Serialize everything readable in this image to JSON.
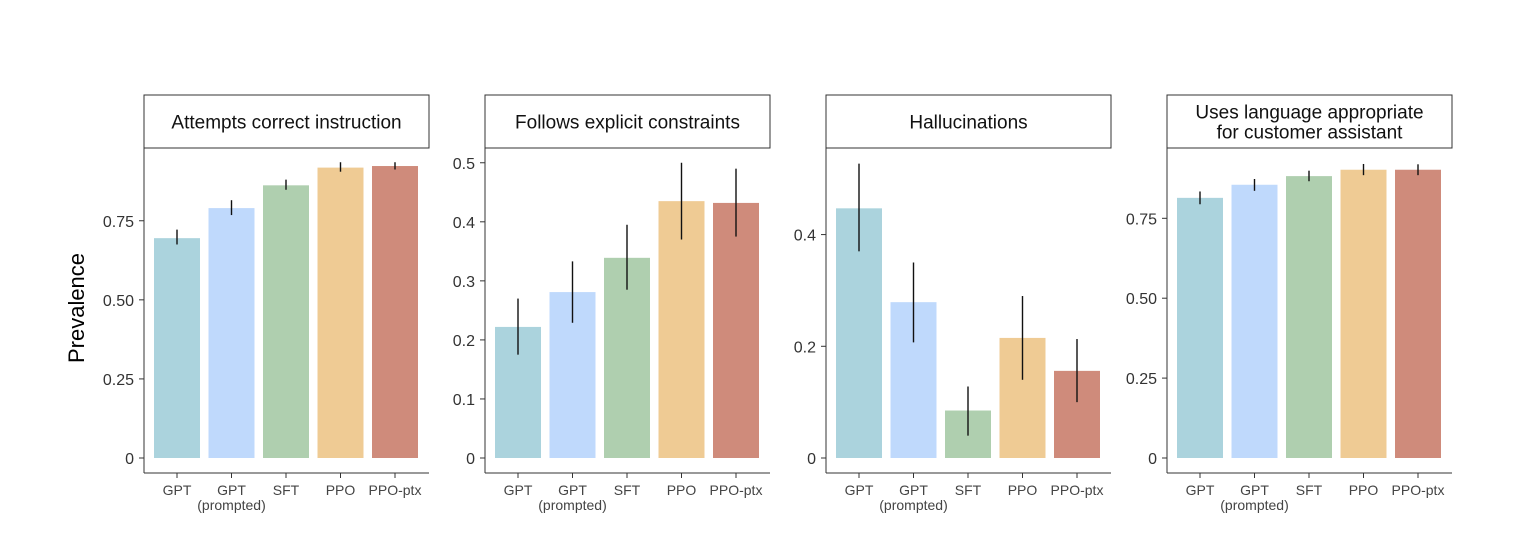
{
  "figure": {
    "ylabel": "Prevalence"
  },
  "chart_data": [
    {
      "type": "bar",
      "title_lines": [
        "Attempts correct instruction"
      ],
      "categories": [
        [
          "GPT"
        ],
        [
          "GPT",
          "(prompted)"
        ],
        [
          "SFT"
        ],
        [
          "PPO"
        ],
        [
          "PPO-ptx"
        ]
      ],
      "values": [
        0.695,
        0.79,
        0.862,
        0.918,
        0.923
      ],
      "err_low": [
        0.675,
        0.768,
        0.848,
        0.905,
        0.912
      ],
      "err_high": [
        0.722,
        0.815,
        0.88,
        0.935,
        0.935
      ],
      "colors": [
        "#abd3dd",
        "#bfd9fc",
        "#afcfaf",
        "#efcb94",
        "#cf8b7b"
      ],
      "ylim": [
        0,
        0.98
      ],
      "yticks": [
        0,
        0.25,
        0.5,
        0.75
      ],
      "ytick_labels": [
        "0",
        "0.25",
        "0.50",
        "0.75"
      ]
    },
    {
      "type": "bar",
      "title_lines": [
        "Follows explicit constraints"
      ],
      "categories": [
        [
          "GPT"
        ],
        [
          "GPT",
          "(prompted)"
        ],
        [
          "SFT"
        ],
        [
          "PPO"
        ],
        [
          "PPO-ptx"
        ]
      ],
      "values": [
        0.222,
        0.281,
        0.339,
        0.435,
        0.432
      ],
      "err_low": [
        0.175,
        0.229,
        0.285,
        0.37,
        0.375
      ],
      "err_high": [
        0.27,
        0.333,
        0.395,
        0.5,
        0.49
      ],
      "colors": [
        "#abd3dd",
        "#bfd9fc",
        "#afcfaf",
        "#efcb94",
        "#cf8b7b"
      ],
      "ylim": [
        0,
        0.525
      ],
      "yticks": [
        0,
        0.1,
        0.2,
        0.3,
        0.4,
        0.5
      ],
      "ytick_labels": [
        "0",
        "0.1",
        "0.2",
        "0.3",
        "0.4",
        "0.5"
      ]
    },
    {
      "type": "bar",
      "title_lines": [
        "Hallucinations"
      ],
      "categories": [
        [
          "GPT"
        ],
        [
          "GPT",
          "(prompted)"
        ],
        [
          "SFT"
        ],
        [
          "PPO"
        ],
        [
          "PPO-ptx"
        ]
      ],
      "values": [
        0.447,
        0.279,
        0.085,
        0.215,
        0.156
      ],
      "err_low": [
        0.37,
        0.207,
        0.04,
        0.14,
        0.1
      ],
      "err_high": [
        0.527,
        0.35,
        0.128,
        0.29,
        0.213
      ],
      "colors": [
        "#abd3dd",
        "#bfd9fc",
        "#afcfaf",
        "#efcb94",
        "#cf8b7b"
      ],
      "ylim": [
        0,
        0.555
      ],
      "yticks": [
        0,
        0.2,
        0.4
      ],
      "ytick_labels": [
        "0",
        "0.2",
        "0.4"
      ]
    },
    {
      "type": "bar",
      "title_lines": [
        "Uses language appropriate",
        "for customer assistant"
      ],
      "categories": [
        [
          "GPT"
        ],
        [
          "GPT",
          "(prompted)"
        ],
        [
          "SFT"
        ],
        [
          "PPO"
        ],
        [
          "PPO-ptx"
        ]
      ],
      "values": [
        0.814,
        0.855,
        0.882,
        0.902,
        0.902
      ],
      "err_low": [
        0.794,
        0.836,
        0.866,
        0.885,
        0.885
      ],
      "err_high": [
        0.834,
        0.873,
        0.899,
        0.92,
        0.919
      ],
      "colors": [
        "#abd3dd",
        "#bfd9fc",
        "#afcfaf",
        "#efcb94",
        "#cf8b7b"
      ],
      "ylim": [
        0,
        0.97
      ],
      "yticks": [
        0,
        0.25,
        0.5,
        0.75
      ],
      "ytick_labels": [
        "0",
        "0.25",
        "0.50",
        "0.75"
      ]
    }
  ]
}
